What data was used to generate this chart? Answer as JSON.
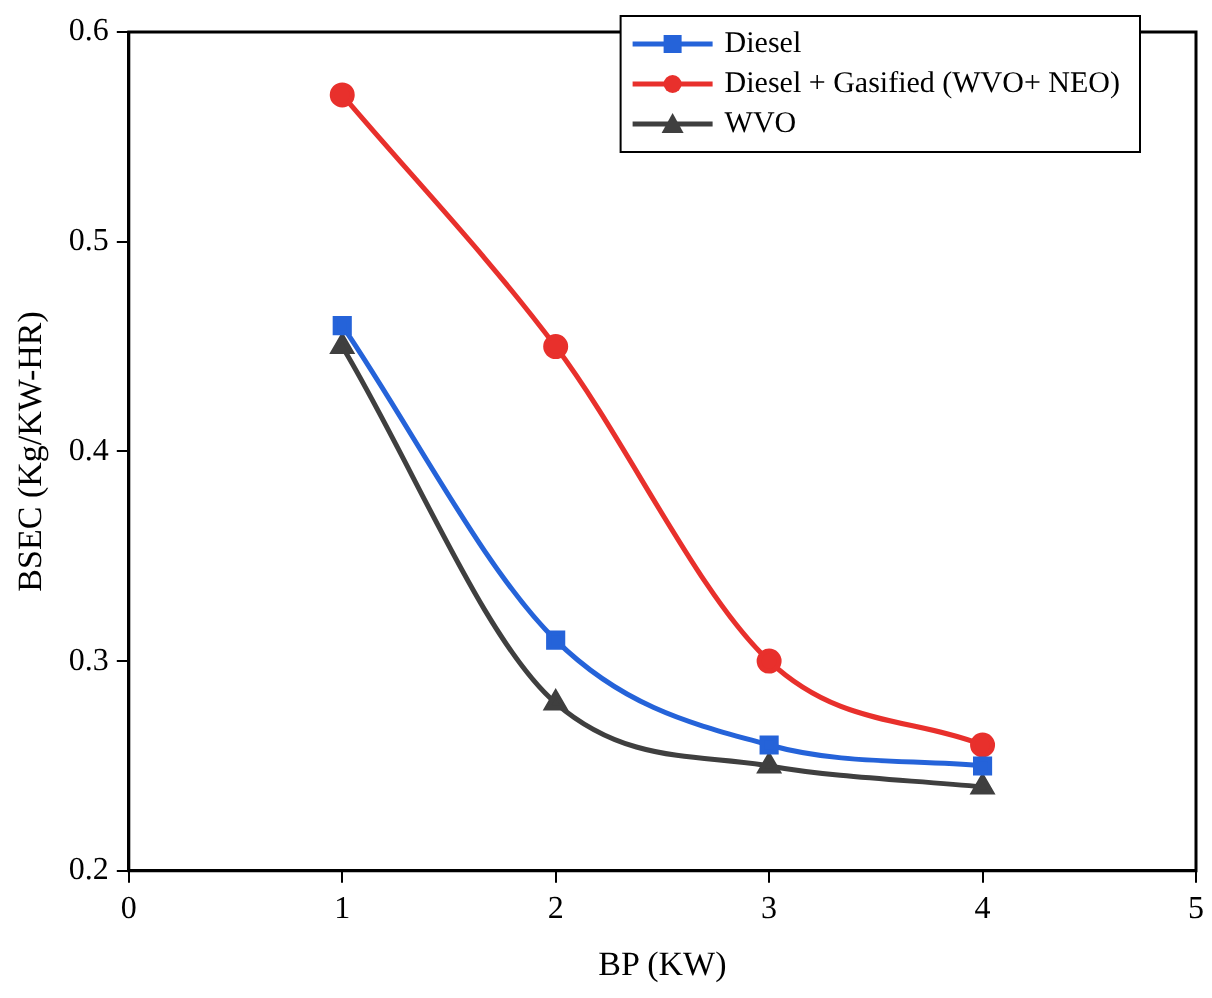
{
  "chart_data": {
    "type": "line",
    "xlabel": "BP (KW)",
    "ylabel": "BSEC (Kg/KW-HR)",
    "x": [
      1,
      2,
      3,
      4
    ],
    "series": [
      {
        "name": "Diesel",
        "color": "#2563d9",
        "marker": "square",
        "values": [
          0.46,
          0.31,
          0.26,
          0.25
        ]
      },
      {
        "name": "Diesel + Gasified (WVO+ NEO)",
        "color": "#e8302c",
        "marker": "circle",
        "values": [
          0.57,
          0.45,
          0.3,
          0.26
        ]
      },
      {
        "name": "WVO",
        "color": "#3f3f3f",
        "marker": "triangle",
        "values": [
          0.45,
          0.28,
          0.25,
          0.24
        ]
      }
    ],
    "xlim": [
      0,
      5
    ],
    "xticks": [
      0,
      1,
      2,
      3,
      4,
      5
    ],
    "ylim": [
      0.2,
      0.6
    ],
    "yticks": [
      0.2,
      0.3,
      0.4,
      0.5,
      0.6
    ],
    "grid": false,
    "legend": "top right",
    "line_style": "solid"
  }
}
